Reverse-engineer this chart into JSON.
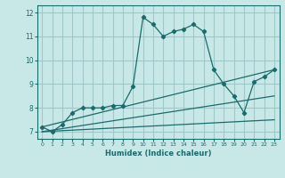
{
  "xlabel": "Humidex (Indice chaleur)",
  "ylabel": "",
  "background_color": "#c8e8e8",
  "grid_color": "#a0c8c8",
  "line_color": "#1a6b6b",
  "xlim": [
    -0.5,
    23.5
  ],
  "ylim": [
    6.7,
    12.3
  ],
  "xticks": [
    0,
    1,
    2,
    3,
    4,
    5,
    6,
    7,
    8,
    9,
    10,
    11,
    12,
    13,
    14,
    15,
    16,
    17,
    18,
    19,
    20,
    21,
    22,
    23
  ],
  "yticks": [
    7,
    8,
    9,
    10,
    11,
    12
  ],
  "series": [
    {
      "x": [
        0,
        1,
        2,
        3,
        4,
        5,
        6,
        7,
        8,
        9,
        10,
        11,
        12,
        13,
        14,
        15,
        16,
        17,
        18,
        19,
        20,
        21,
        22,
        23
      ],
      "y": [
        7.2,
        7.0,
        7.3,
        7.8,
        8.0,
        8.0,
        8.0,
        8.1,
        8.1,
        8.9,
        11.8,
        11.5,
        11.0,
        11.2,
        11.3,
        11.5,
        11.2,
        9.6,
        9.0,
        8.5,
        7.8,
        9.1,
        9.3,
        9.6
      ],
      "marker": true
    },
    {
      "x": [
        0,
        23
      ],
      "y": [
        7.2,
        9.6
      ],
      "marker": false
    },
    {
      "x": [
        0,
        23
      ],
      "y": [
        7.0,
        8.5
      ],
      "marker": false
    },
    {
      "x": [
        0,
        23
      ],
      "y": [
        7.0,
        7.5
      ],
      "marker": false
    }
  ]
}
